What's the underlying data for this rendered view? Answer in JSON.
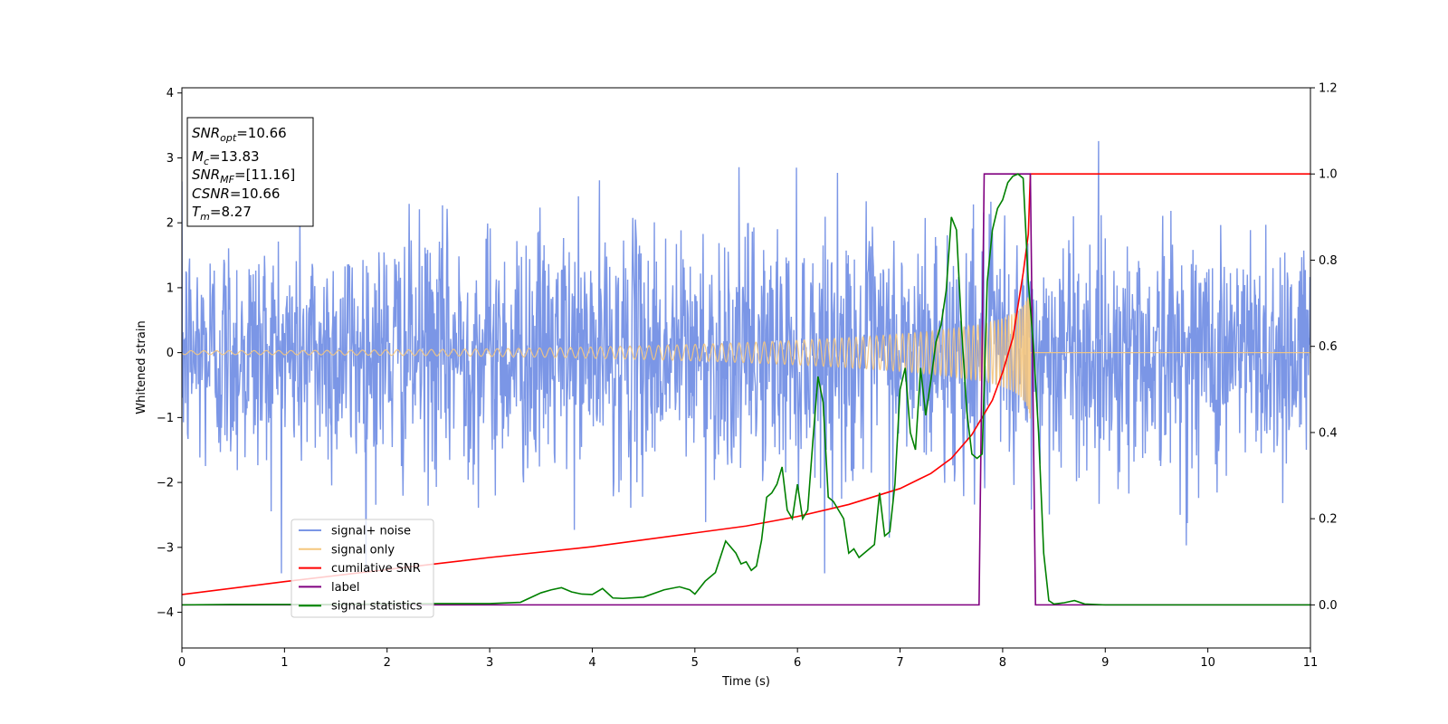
{
  "chart_data": {
    "type": "line",
    "xlabel": "Time (s)",
    "ylabel": "Whitened strain",
    "xlim": [
      0,
      11
    ],
    "ylim": [
      -4.55,
      4.08
    ],
    "y2lim": [
      -0.1,
      1.2
    ],
    "xticks": [
      0,
      1,
      2,
      3,
      4,
      5,
      6,
      7,
      8,
      9,
      10,
      11
    ],
    "yticks": [
      -4,
      -3,
      -2,
      -1,
      0,
      1,
      2,
      3,
      4
    ],
    "y2ticks": [
      "0.0",
      "0.2",
      "0.4",
      "0.6",
      "0.8",
      "1.0",
      "1.2"
    ],
    "grid": false,
    "legend_position": "lower-left",
    "annotation": {
      "lines": [
        {
          "base": "SNR",
          "sub": "opt",
          "value": "=10.66"
        },
        {
          "base": "M",
          "sub": "c",
          "value": "=13.83"
        },
        {
          "base": "SNR",
          "sub": "MF",
          "value": "=[11.16]"
        },
        {
          "base": "CSNR",
          "sub": "",
          "value": "=10.66"
        },
        {
          "base": "T",
          "sub": "m",
          "value": "=8.27"
        }
      ]
    },
    "series": [
      {
        "name": "signal+ noise",
        "axis": "left",
        "color": "#7b96e6",
        "kind": "noise",
        "std": 0.95,
        "envelope_max": 3.6,
        "envelope_min": -3.4,
        "x_range": [
          0,
          11
        ],
        "samples": 2200
      },
      {
        "name": "signal only",
        "axis": "left",
        "color": "#f5c77e",
        "kind": "chirp",
        "merger_time": 8.27,
        "peak_amplitude": 1.05,
        "base_amplitude": 0.03
      },
      {
        "name": "cumilative SNR",
        "axis": "right",
        "color": "#ff0000",
        "x": [
          0,
          1,
          2,
          3,
          4,
          5,
          5.5,
          6,
          6.5,
          7,
          7.3,
          7.5,
          7.7,
          7.9,
          8.0,
          8.1,
          8.2,
          8.25,
          8.27,
          8.3,
          11
        ],
        "y": [
          0.024,
          0.054,
          0.082,
          0.11,
          0.135,
          0.167,
          0.183,
          0.205,
          0.233,
          0.27,
          0.305,
          0.34,
          0.395,
          0.475,
          0.54,
          0.62,
          0.77,
          0.86,
          1.0,
          1.0,
          1.0
        ]
      },
      {
        "name": "label",
        "axis": "right",
        "color": "#800080",
        "x": [
          0,
          7.77,
          7.82,
          8.27,
          8.32,
          11
        ],
        "y": [
          0,
          0,
          1,
          1,
          0,
          0
        ]
      },
      {
        "name": "signal statistics",
        "axis": "right",
        "color": "#008000",
        "x": [
          0,
          0.5,
          1,
          1.5,
          2,
          2.5,
          3,
          3.3,
          3.5,
          3.6,
          3.7,
          3.8,
          3.9,
          4,
          4.1,
          4.2,
          4.3,
          4.5,
          4.7,
          4.85,
          4.95,
          5.0,
          5.1,
          5.2,
          5.3,
          5.4,
          5.45,
          5.5,
          5.55,
          5.6,
          5.65,
          5.7,
          5.75,
          5.8,
          5.85,
          5.9,
          5.95,
          6.0,
          6.05,
          6.1,
          6.15,
          6.2,
          6.25,
          6.3,
          6.35,
          6.4,
          6.45,
          6.5,
          6.55,
          6.6,
          6.65,
          6.7,
          6.75,
          6.8,
          6.85,
          6.9,
          6.95,
          7.0,
          7.05,
          7.1,
          7.15,
          7.2,
          7.25,
          7.3,
          7.35,
          7.4,
          7.45,
          7.5,
          7.55,
          7.6,
          7.65,
          7.7,
          7.75,
          7.8,
          7.85,
          7.9,
          7.95,
          8.0,
          8.05,
          8.1,
          8.15,
          8.2,
          8.25,
          8.3,
          8.35,
          8.4,
          8.45,
          8.5,
          8.6,
          8.7,
          8.8,
          9,
          10,
          11
        ],
        "y": [
          0,
          0.001,
          0.001,
          0.001,
          0.002,
          0.003,
          0.003,
          0.006,
          0.028,
          0.035,
          0.04,
          0.03,
          0.025,
          0.024,
          0.038,
          0.016,
          0.015,
          0.018,
          0.035,
          0.042,
          0.035,
          0.025,
          0.055,
          0.075,
          0.148,
          0.12,
          0.095,
          0.1,
          0.08,
          0.09,
          0.15,
          0.25,
          0.26,
          0.28,
          0.32,
          0.22,
          0.2,
          0.28,
          0.2,
          0.22,
          0.38,
          0.53,
          0.47,
          0.25,
          0.24,
          0.22,
          0.2,
          0.12,
          0.13,
          0.11,
          0.12,
          0.13,
          0.14,
          0.26,
          0.16,
          0.17,
          0.28,
          0.5,
          0.55,
          0.4,
          0.36,
          0.55,
          0.44,
          0.52,
          0.61,
          0.65,
          0.73,
          0.9,
          0.87,
          0.64,
          0.45,
          0.35,
          0.34,
          0.35,
          0.75,
          0.87,
          0.92,
          0.94,
          0.98,
          0.995,
          1.0,
          0.99,
          0.75,
          0.6,
          0.4,
          0.12,
          0.01,
          0.002,
          0.005,
          0.01,
          0.002,
          0.0,
          0.0,
          0.0
        ]
      }
    ]
  }
}
